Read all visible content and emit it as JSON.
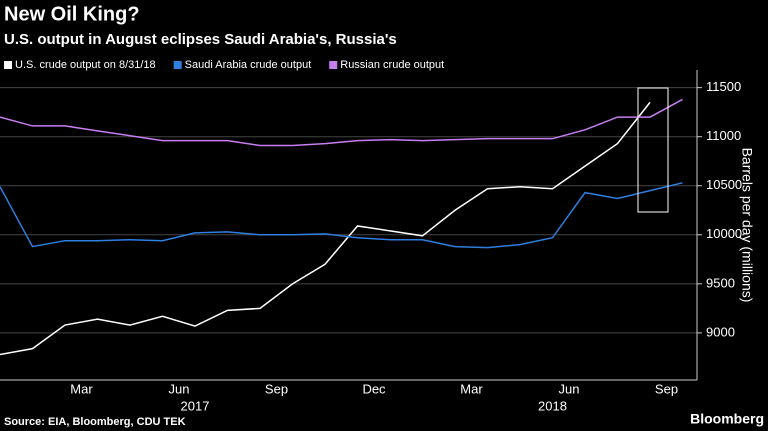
{
  "chart_data": {
    "type": "line",
    "title": "New Oil King?",
    "subtitle": "U.S. output in August eclipses Saudi Arabia's, Russia's",
    "y_label": "Barrels per day (millions)",
    "source": "Source: EIA, Bloomberg, CDU TEK",
    "brand": "Bloomberg",
    "categories": [
      null,
      null,
      null,
      "Mar",
      null,
      null,
      "Jun",
      null,
      null,
      "Sep",
      null,
      null,
      "Dec",
      null,
      null,
      "Mar",
      null,
      null,
      "Jun",
      null,
      null,
      "Sep"
    ],
    "years": [
      "2017",
      "2018"
    ],
    "series": [
      {
        "name": "U.S. crude output on 8/31/18",
        "color": "#ffffff",
        "values": [
          8780,
          8840,
          9080,
          9140,
          9080,
          9170,
          9070,
          9230,
          9250,
          9500,
          9700,
          10090,
          10040,
          9990,
          10250,
          10470,
          10490,
          10470,
          10700,
          10930,
          11350,
          null
        ]
      },
      {
        "name": "Saudi Arabia crude output",
        "color": "#2e7fe0",
        "values": [
          10490,
          9880,
          9940,
          9940,
          9950,
          9940,
          10020,
          10030,
          10000,
          10000,
          10010,
          9970,
          9950,
          9950,
          9880,
          9870,
          9900,
          9970,
          10430,
          10370,
          10450,
          10530
        ]
      },
      {
        "name": "Russian crude output",
        "color": "#c77ef0",
        "values": [
          11200,
          11110,
          11110,
          11060,
          11010,
          10960,
          10960,
          10960,
          10910,
          10910,
          10930,
          10960,
          10970,
          10960,
          10970,
          10980,
          10980,
          10980,
          11070,
          11200,
          11200,
          11380
        ]
      }
    ],
    "ylim": [
      8520,
      11680
    ],
    "yticks": [
      9000,
      9500,
      10000,
      10500,
      11000,
      11500
    ],
    "grid": true
  }
}
